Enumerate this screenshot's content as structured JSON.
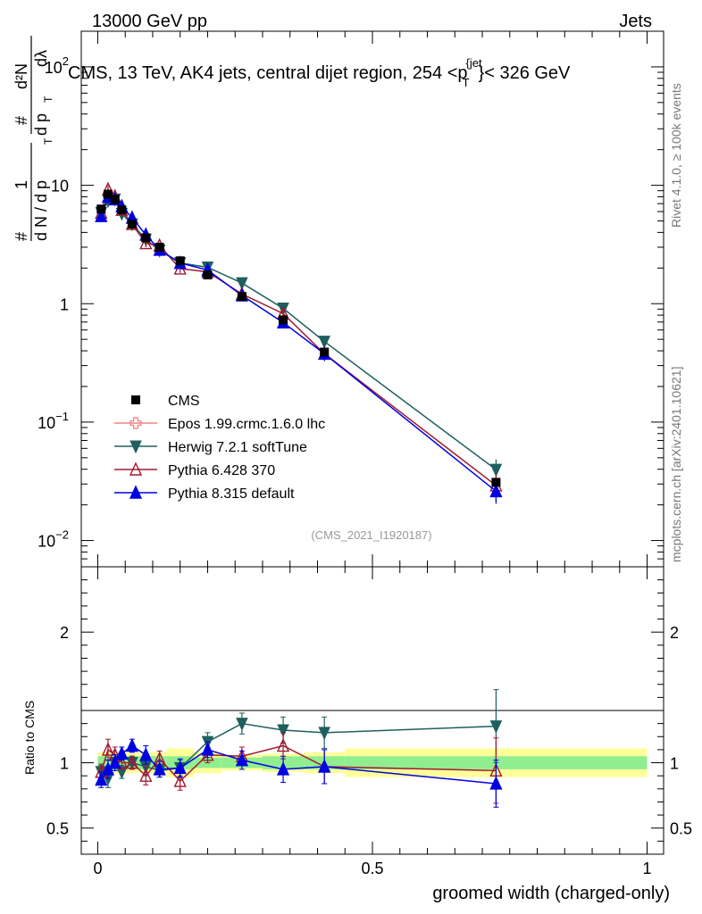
{
  "header": {
    "left": "13000 GeV pp",
    "right": "Jets"
  },
  "side_labels": {
    "rivet": "Rivet 4.1.0, ≥ 100k events",
    "mcplots": "mcplots.cern.ch [arXiv:2401.10621]"
  },
  "chart_data": {
    "type": "line",
    "title": "CMS, 13 TeV, AK4 jets, central dijet region, 254 <p_T^{jet}< 326 GeV",
    "title_parts": {
      "main": "CMS, 13 TeV, AK4 jets, central dijet region, 254 <p",
      "sup": "{jet",
      "sub": "T",
      "tail": "}< 326 GeV"
    },
    "watermark": "(CMS_2021_I1920187)",
    "xlabel": "groomed width (charged-only)",
    "ylabel_parts": {
      "hash1": "#",
      "one": "1",
      "den": "d N / d p",
      "den_sub": "T",
      "hash2": "#",
      "num": "d²N",
      "num_den": "d p",
      "num_den_sub": "T",
      "num_den_tail": "dλ"
    },
    "ratio_ylabel": "Ratio to CMS",
    "xlim": [
      -0.03,
      1.03
    ],
    "ylim_main": [
      0.006,
      200
    ],
    "ylim_ratio": [
      0.3,
      2.5
    ],
    "x_ticks": [
      {
        "v": 0,
        "label": "0"
      },
      {
        "v": 0.5,
        "label": "0.5"
      },
      {
        "v": 1,
        "label": "1"
      }
    ],
    "y_ticks_main": [
      {
        "v": 0.01,
        "base": "10",
        "exp": "−2"
      },
      {
        "v": 0.1,
        "base": "10",
        "exp": "−1"
      },
      {
        "v": 1,
        "base": "1",
        "exp": ""
      },
      {
        "v": 10,
        "base": "10",
        "exp": ""
      },
      {
        "v": 100,
        "base": "10",
        "exp": "2"
      }
    ],
    "y_ticks_ratio": [
      {
        "v": 0.5,
        "label": "0.5"
      },
      {
        "v": 1,
        "label": "1"
      },
      {
        "v": 2,
        "label": "2"
      }
    ],
    "bin_edges": [
      0,
      0.0125,
      0.025,
      0.0375,
      0.05,
      0.075,
      0.1,
      0.125,
      0.175,
      0.225,
      0.3,
      0.375,
      0.45,
      1.0
    ],
    "band_inner": [
      0.05,
      0.06,
      0.05,
      0.06,
      0.05,
      0.05,
      0.05,
      0.05,
      0.04,
      0.04,
      0.05,
      0.05,
      0.05
    ],
    "band_outer": [
      0.08,
      0.09,
      0.08,
      0.09,
      0.08,
      0.08,
      0.08,
      0.11,
      0.08,
      0.06,
      0.07,
      0.08,
      0.11
    ],
    "x": [
      0.00625,
      0.01875,
      0.03125,
      0.04375,
      0.0625,
      0.0875,
      0.1125,
      0.15,
      0.2,
      0.2625,
      0.3375,
      0.4125,
      0.725
    ],
    "cms": {
      "name": "CMS",
      "color": "#000000",
      "values": [
        6.3,
        8.4,
        7.6,
        6.2,
        4.7,
        3.6,
        3.0,
        2.3,
        1.75,
        1.15,
        0.73,
        0.39,
        0.031
      ]
    },
    "series": [
      {
        "name": "Epos 1.99.crmc.1.6.0 lhc",
        "color": "#f08080",
        "marker": "open-cross",
        "ratio": [],
        "ratio_err": []
      },
      {
        "name": "Herwig 7.2.1 softTune",
        "color": "#1e5f5f",
        "marker": "filled-down-triangle",
        "ratio": [
          0.93,
          0.88,
          1.0,
          0.93,
          1.0,
          0.97,
          0.94,
          0.96,
          1.16,
          1.3,
          1.25,
          1.23,
          1.28
        ],
        "ratio_err": [
          0.05,
          0.07,
          0.06,
          0.05,
          0.05,
          0.07,
          0.05,
          0.06,
          0.07,
          0.08,
          0.1,
          0.12,
          0.28
        ]
      },
      {
        "name": "Pythia 6.428 370",
        "color": "#a01830",
        "marker": "open-up-triangle",
        "ratio": [
          0.93,
          1.1,
          1.06,
          1.0,
          1.0,
          0.9,
          1.03,
          0.86,
          1.06,
          1.05,
          1.13,
          0.97,
          0.94
        ],
        "ratio_err": [
          0.06,
          0.08,
          0.06,
          0.05,
          0.05,
          0.07,
          0.06,
          0.07,
          0.06,
          0.07,
          0.1,
          0.13,
          0.25
        ]
      },
      {
        "name": "Pythia 8.315 default",
        "color": "#0000e0",
        "marker": "filled-up-triangle",
        "ratio": [
          0.87,
          0.95,
          1.0,
          1.07,
          1.13,
          1.06,
          0.95,
          0.96,
          1.1,
          1.02,
          0.95,
          0.97,
          0.84
        ],
        "ratio_err": [
          0.06,
          0.07,
          0.06,
          0.05,
          0.05,
          0.07,
          0.06,
          0.07,
          0.06,
          0.07,
          0.1,
          0.13,
          0.18
        ]
      }
    ],
    "legend_position": "center-left"
  }
}
